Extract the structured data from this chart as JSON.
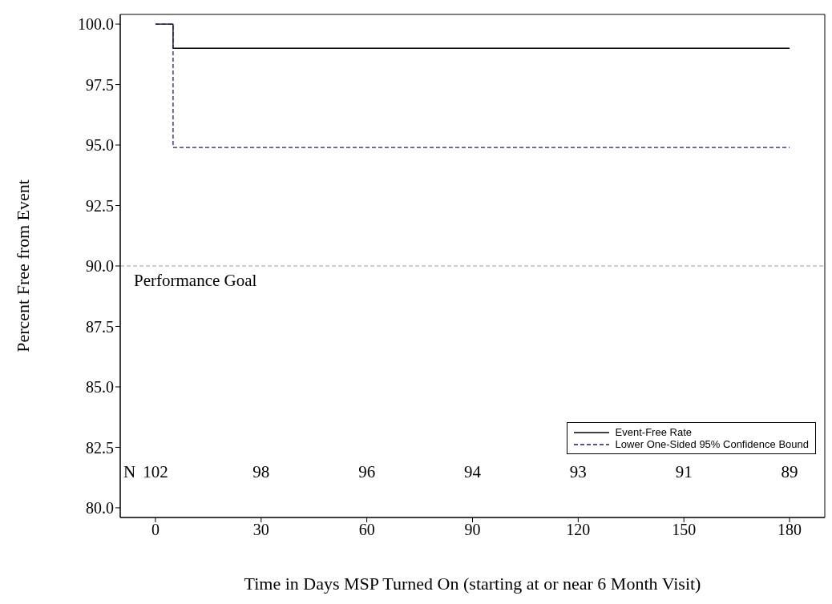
{
  "chart_data": {
    "type": "step",
    "xlabel": "Time in Days MSP Turned On (starting at or near 6 Month Visit)",
    "ylabel": "Percent Free from Event",
    "x": [
      0,
      5,
      180
    ],
    "series": [
      {
        "name": "Event-Free Rate",
        "color": "#000000",
        "values": [
          100,
          99.0,
          99.0
        ],
        "line_style": "solid"
      },
      {
        "name": "Lower One-Sided 95% Confidence Bound",
        "color": "#1a1a80",
        "values": [
          100,
          94.9,
          94.9
        ],
        "line_style": "dashed"
      }
    ],
    "xlim": [
      -10,
      190
    ],
    "xticks": [
      0,
      30,
      60,
      90,
      120,
      150,
      180
    ],
    "ylim": [
      79.6,
      100.4
    ],
    "yticks": [
      {
        "value": 80,
        "label": "80.0"
      },
      {
        "value": 82.5,
        "label": "82.5"
      },
      {
        "value": 85,
        "label": "85.0"
      },
      {
        "value": 87.5,
        "label": "87.5"
      },
      {
        "value": 90,
        "label": "90.0"
      },
      {
        "value": 92.5,
        "label": "92.5"
      },
      {
        "value": 95,
        "label": "95.0"
      },
      {
        "value": 97.5,
        "label": "97.5"
      },
      {
        "value": 100,
        "label": "100.0"
      }
    ],
    "ref_lines": [
      {
        "axis": "y",
        "value": 90,
        "label": "Performance Goal",
        "color": "#999999",
        "line_style": "dashed"
      }
    ],
    "annotations": [
      "N",
      "102",
      "98",
      "96",
      "94",
      "93",
      "91",
      "89"
    ],
    "grid": false,
    "legend": "bottom right",
    "marker": "none"
  }
}
